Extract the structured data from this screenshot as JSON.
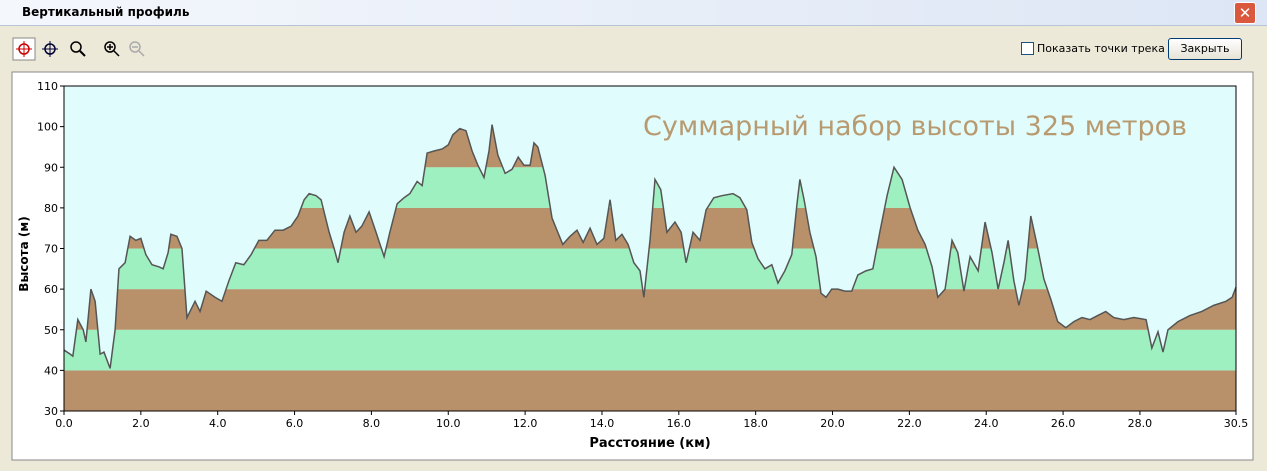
{
  "window": {
    "title": "Вертикальный профиль"
  },
  "toolbar": {
    "checkbox_label": "Показать точки трека",
    "button": "Закрыть"
  },
  "chart_data": {
    "type": "area",
    "annotation": "Суммарный набор высоты 325 метров",
    "x_label": "Расстояние  (км)",
    "y_label": "Высота (м)",
    "line_color": "#555555",
    "band_colors": [
      "#b8916a",
      "#9ff0c0"
    ],
    "background": "#e0fcfc",
    "xlim": [
      0,
      30.5
    ],
    "ylim": [
      30,
      110
    ],
    "xticks": [
      {
        "value": 0,
        "label": "0.0"
      },
      {
        "value": 2,
        "label": "2.0"
      },
      {
        "value": 4,
        "label": "4.0"
      },
      {
        "value": 6,
        "label": "6.0"
      },
      {
        "value": 8,
        "label": "8.0"
      },
      {
        "value": 10,
        "label": "10.0"
      },
      {
        "value": 12,
        "label": "12.0"
      },
      {
        "value": 14,
        "label": "14.0"
      },
      {
        "value": 16,
        "label": "16.0"
      },
      {
        "value": 18,
        "label": "18.0"
      },
      {
        "value": 20,
        "label": "20.0"
      },
      {
        "value": 22,
        "label": "22.0"
      },
      {
        "value": 24,
        "label": "24.0"
      },
      {
        "value": 26,
        "label": "26.0"
      },
      {
        "value": 28,
        "label": "28.0"
      },
      30.5
    ],
    "yticks": [
      30,
      40,
      50,
      60,
      70,
      80,
      90,
      100,
      110
    ],
    "x": [
      0,
      0.16,
      0.23,
      0.36,
      0.5,
      0.57,
      0.7,
      0.81,
      0.94,
      1.04,
      1.2,
      1.33,
      1.43,
      1.59,
      1.72,
      1.87,
      2.0,
      2.13,
      2.29,
      2.47,
      2.58,
      2.71,
      2.78,
      2.94,
      3.07,
      3.2,
      3.41,
      3.54,
      3.7,
      3.93,
      4.11,
      4.29,
      4.47,
      4.68,
      4.87,
      5.07,
      5.28,
      5.49,
      5.7,
      5.91,
      6.09,
      6.25,
      6.38,
      6.56,
      6.69,
      6.9,
      7.03,
      7.13,
      7.29,
      7.44,
      7.6,
      7.75,
      7.94,
      8.12,
      8.33,
      8.48,
      8.67,
      8.85,
      9.0,
      9.19,
      9.32,
      9.45,
      9.63,
      9.84,
      10.0,
      10.12,
      10.3,
      10.46,
      10.62,
      10.77,
      10.93,
      11.06,
      11.14,
      11.29,
      11.48,
      11.66,
      11.82,
      11.97,
      12.13,
      12.23,
      12.33,
      12.52,
      12.7,
      12.85,
      12.98,
      13.17,
      13.35,
      13.51,
      13.69,
      13.87,
      14.05,
      14.21,
      14.36,
      14.52,
      14.68,
      14.83,
      14.99,
      15.09,
      15.25,
      15.38,
      15.53,
      15.69,
      15.9,
      16.06,
      16.19,
      16.37,
      16.55,
      16.71,
      16.91,
      17.12,
      17.41,
      17.59,
      17.77,
      17.9,
      18.06,
      18.24,
      18.42,
      18.58,
      18.76,
      18.94,
      19.07,
      19.15,
      19.26,
      19.41,
      19.57,
      19.7,
      19.83,
      19.98,
      20.14,
      20.32,
      20.5,
      20.66,
      20.87,
      21.05,
      21.23,
      21.42,
      21.6,
      21.81,
      22.02,
      22.22,
      22.41,
      22.59,
      22.74,
      22.93,
      23.11,
      23.26,
      23.42,
      23.58,
      23.79,
      23.97,
      24.15,
      24.31,
      24.46,
      24.57,
      24.72,
      24.85,
      25.01,
      25.16,
      25.32,
      25.5,
      25.68,
      25.86,
      26.07,
      26.28,
      26.49,
      26.7,
      26.9,
      27.11,
      27.32,
      27.58,
      27.84,
      28.16,
      28.31,
      28.47,
      28.6,
      28.73,
      28.99,
      29.3,
      29.61,
      29.92,
      30.24,
      30.4,
      30.5
    ],
    "values": [
      45,
      44,
      43.5,
      52.5,
      50,
      47,
      60,
      57,
      44,
      44.5,
      40.5,
      50,
      65,
      66.5,
      73,
      72,
      72.5,
      68.5,
      66,
      65.5,
      65,
      69,
      73.5,
      73,
      70,
      53,
      57,
      54.5,
      59.5,
      58,
      57,
      62,
      66.5,
      66,
      68.5,
      72,
      72,
      74.5,
      74.5,
      75.5,
      78,
      82,
      83.5,
      83,
      82,
      74,
      70,
      66.5,
      74,
      78,
      74,
      75.5,
      79,
      74,
      68,
      74,
      81,
      82.5,
      83.5,
      86.5,
      85.5,
      93.5,
      94,
      94.5,
      95.5,
      98,
      99.5,
      99,
      94,
      90.5,
      87.5,
      94,
      100.5,
      93,
      88.5,
      89.5,
      92.5,
      90.5,
      90.5,
      96,
      95,
      88,
      77.5,
      74,
      71,
      73,
      74.5,
      71.5,
      75,
      71,
      72.5,
      82,
      72,
      73.5,
      71,
      66.5,
      64.5,
      58,
      72,
      87,
      84.5,
      74,
      76.5,
      74,
      66.5,
      74,
      72,
      79.5,
      82.5,
      83,
      83.5,
      82.5,
      79.5,
      71.5,
      67.5,
      65,
      66,
      61.5,
      64.5,
      68.5,
      80.5,
      87,
      82,
      74,
      68,
      59,
      58,
      60,
      60,
      59.5,
      59.5,
      63.5,
      64.5,
      65,
      74,
      83,
      90,
      87,
      80,
      74.5,
      71,
      65.5,
      58,
      60,
      72,
      69,
      59.5,
      68,
      64.5,
      76.5,
      69,
      60,
      66.5,
      72,
      62,
      56,
      62.5,
      78,
      71,
      62.5,
      57.5,
      52,
      50.5,
      52,
      53,
      52.5,
      53.5,
      54.5,
      53,
      52.5,
      53,
      52.5,
      45.5,
      49.5,
      44.5,
      50,
      52,
      53.5,
      54.5,
      56,
      57,
      58,
      60.5
    ]
  }
}
